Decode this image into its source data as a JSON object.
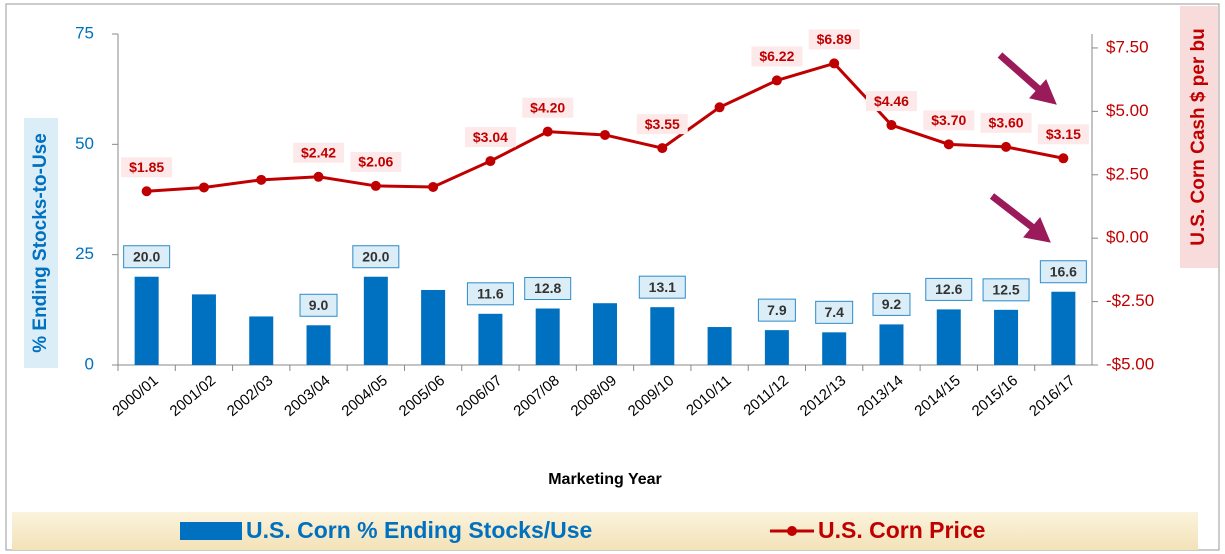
{
  "chart_data": {
    "type": "combo",
    "x_label": "Marketing Year",
    "y_label": "% Ending Stocks-to-Use",
    "y2_label": "U.S. Corn Cash $ per bu",
    "categories": [
      "2000/01",
      "2001/02",
      "2002/03",
      "2003/04",
      "2004/05",
      "2005/06",
      "2006/07",
      "2007/08",
      "2008/09",
      "2009/10",
      "2010/11",
      "2011/12",
      "2012/13",
      "2013/14",
      "2014/15",
      "2015/16",
      "2016/17"
    ],
    "series": [
      {
        "name": "U.S. Corn % Ending Stocks/Use",
        "type": "bar",
        "color": "#0070c0",
        "values": [
          20.0,
          16,
          11,
          9.0,
          20.0,
          17,
          11.6,
          12.8,
          14,
          13.1,
          8.6,
          7.9,
          7.4,
          9.2,
          12.6,
          12.5,
          16.6
        ],
        "value_labels": [
          "20.0",
          null,
          null,
          "9.0",
          "20.0",
          null,
          "11.6",
          "12.8",
          null,
          "13.1",
          null,
          "7.9",
          "7.4",
          "9.2",
          "12.6",
          "12.5",
          "16.6"
        ]
      },
      {
        "name": "U.S. Corn Price",
        "type": "line",
        "axis": "y2",
        "color": "#c00000",
        "values": [
          1.85,
          2.0,
          2.3,
          2.42,
          2.06,
          2.02,
          3.04,
          4.2,
          4.07,
          3.55,
          5.16,
          6.22,
          6.89,
          4.46,
          3.7,
          3.6,
          3.15
        ],
        "value_labels": [
          "$1.85",
          null,
          null,
          "$2.42",
          "$2.06",
          null,
          "$3.04",
          "$4.20",
          null,
          "$3.55",
          null,
          "$6.22",
          "$6.89",
          "$4.46",
          "$3.70",
          "$3.60",
          "$3.15"
        ]
      }
    ],
    "ylim": [
      0,
      75
    ],
    "yticks": [
      0,
      25,
      50,
      75
    ],
    "y2lim": [
      -5,
      8.05
    ],
    "y2ticks": [
      {
        "value": -5,
        "label": "-$5.00"
      },
      {
        "value": -2.5,
        "label": "-$2.50"
      },
      {
        "value": 0,
        "label": "$0.00"
      },
      {
        "value": 2.5,
        "label": "$2.50"
      },
      {
        "value": 5,
        "label": "$5.00"
      },
      {
        "value": 7.5,
        "label": "$7.50"
      }
    ],
    "legend": "bottom"
  }
}
